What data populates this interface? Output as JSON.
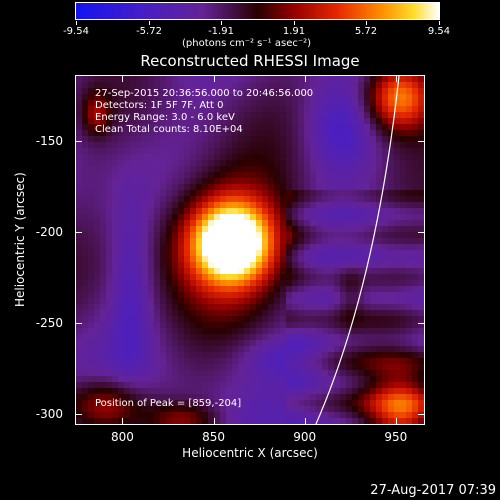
{
  "colorbar": {
    "ticks": [
      "-9.54",
      "-5.72",
      "-1.91",
      "1.91",
      "5.72",
      "9.54"
    ],
    "units": "(photons cm⁻² s⁻¹ asec⁻²)",
    "min": -9.54,
    "max": 9.54
  },
  "title": "Reconstructed RHESSI Image",
  "info": {
    "line1": "27-Sep-2015 20:36:56.000 to 20:46:56.000",
    "line2": "Detectors: 1F 5F 7F, Att 0",
    "line3": "Energy Range: 3.0 - 6.0 keV",
    "line4": "Clean     Total counts: 8.10E+04",
    "peak": "Position of Peak = [859,-204]"
  },
  "axes": {
    "xlabel": "Heliocentric X (arcsec)",
    "ylabel": "Heliocentric Y (arcsec)",
    "xticks": [
      "800",
      "850",
      "900",
      "950"
    ],
    "yticks": [
      "-150",
      "-200",
      "-250",
      "-300"
    ],
    "xticks_values": [
      800,
      850,
      900,
      950
    ],
    "yticks_values": [
      -150,
      -200,
      -250,
      -300
    ],
    "xlim": [
      774,
      966
    ],
    "ylim": [
      -306,
      -114
    ]
  },
  "peak_position": [
    859,
    -204
  ],
  "datestamp": "27-Aug-2017 07:39",
  "colors": {
    "background": "#000000",
    "colormap": "blue-purple-red-yellow-white"
  }
}
